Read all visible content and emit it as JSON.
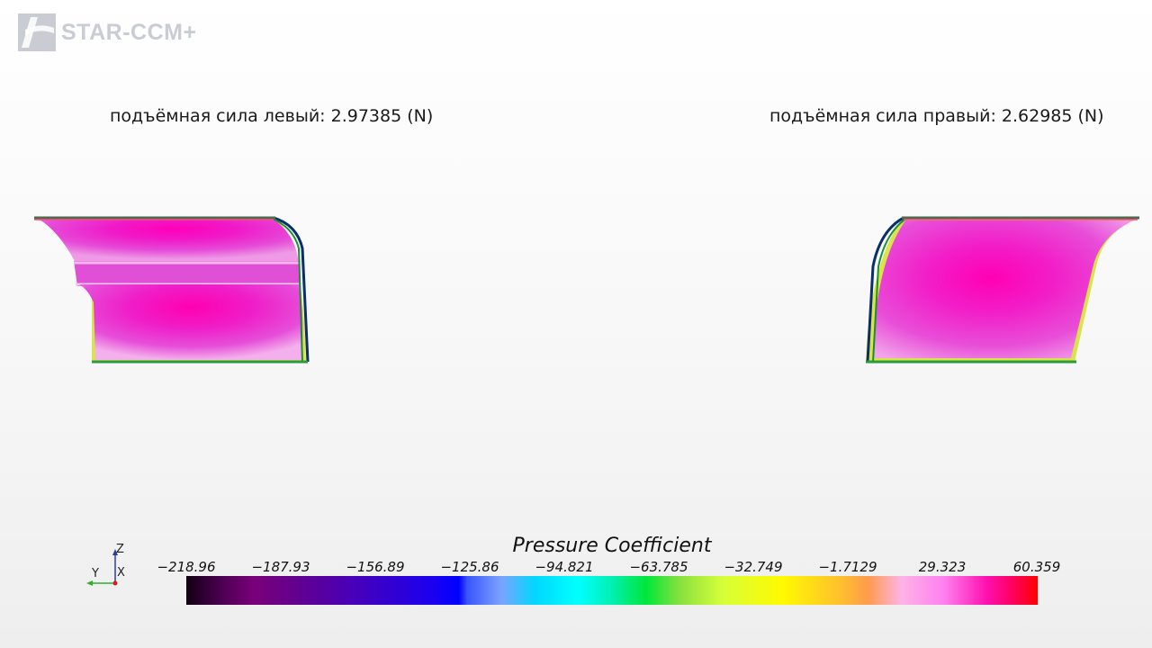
{
  "logo": {
    "text": "STAR-CCM+"
  },
  "forces": {
    "left": "подъёмная сила левый: 2.97385 (N)",
    "right": "подъёмная сила правый: 2.62985 (N)"
  },
  "triad": {
    "z": "Z",
    "y": "Y",
    "x": "X"
  },
  "legend": {
    "title": "Pressure Coefficient",
    "ticks": [
      "-218.96",
      "-187.93",
      "-156.89",
      "-125.86",
      "-94.821",
      "-63.785",
      "-32.749",
      "-1.7129",
      "29.323",
      "60.359"
    ],
    "min": -218.96,
    "max": 60.359
  },
  "colors": {
    "magenta": "#e43cde",
    "pink_core": "#ff00b4",
    "yellow_edge": "#d7e74a",
    "green_edge": "#1a8f3a",
    "navy_edge": "#0b2f6a"
  }
}
